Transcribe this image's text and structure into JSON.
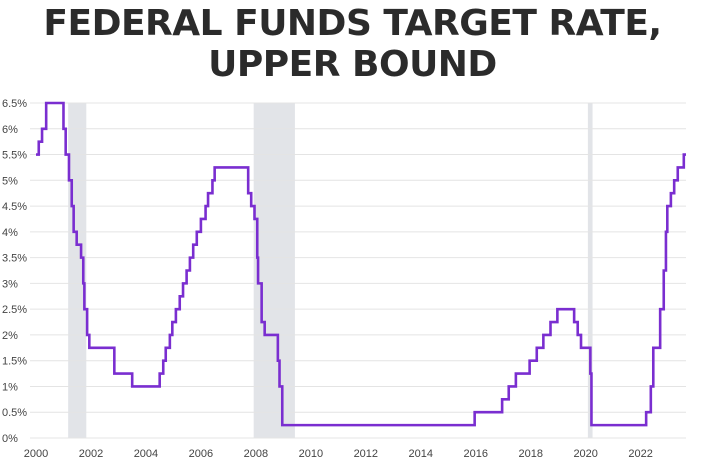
{
  "title_lines": [
    "FEDERAL FUNDS TARGET RATE,",
    "UPPER BOUND"
  ],
  "colors": {
    "line": "#7a2ed0",
    "recession": "#e2e4e8",
    "grid": "#e4e4e4",
    "title": "#2b2b2b",
    "tick": "#444444"
  },
  "chart_data": {
    "type": "line",
    "title": "FEDERAL FUNDS TARGET RATE, UPPER BOUND",
    "xlabel": "",
    "ylabel": "",
    "xlim": [
      2000.0,
      2023.65
    ],
    "ylim": [
      0,
      6.5
    ],
    "x_ticks": [
      2000,
      2002,
      2004,
      2006,
      2008,
      2010,
      2012,
      2014,
      2016,
      2018,
      2020,
      2022
    ],
    "x_tick_labels": [
      "2000",
      "2002",
      "2004",
      "2006",
      "2008",
      "2010",
      "2012",
      "2014",
      "2016",
      "2018",
      "2020",
      "2022"
    ],
    "y_ticks": [
      0,
      0.5,
      1,
      1.5,
      2,
      2.5,
      3,
      3.5,
      4,
      4.5,
      5,
      5.5,
      6,
      6.5
    ],
    "y_tick_labels": [
      "0%",
      "0.5%",
      "1%",
      "1.5%",
      "2%",
      "2.5%",
      "3%",
      "3.5%",
      "4%",
      "4.5%",
      "5%",
      "5.5%",
      "6%",
      "6.5%"
    ],
    "grid": true,
    "recessions": [
      [
        2001.17,
        2001.83
      ],
      [
        2007.92,
        2009.42
      ],
      [
        2020.08,
        2020.25
      ]
    ],
    "series": [
      {
        "name": "Federal funds target rate, upper bound",
        "step": true,
        "points": [
          [
            2000.0,
            5.5
          ],
          [
            2000.1,
            5.75
          ],
          [
            2000.22,
            6.0
          ],
          [
            2000.37,
            6.5
          ],
          [
            2001.0,
            6.0
          ],
          [
            2001.08,
            5.5
          ],
          [
            2001.2,
            5.0
          ],
          [
            2001.3,
            4.5
          ],
          [
            2001.37,
            4.0
          ],
          [
            2001.48,
            3.75
          ],
          [
            2001.64,
            3.5
          ],
          [
            2001.72,
            3.0
          ],
          [
            2001.76,
            2.5
          ],
          [
            2001.86,
            2.0
          ],
          [
            2001.94,
            1.75
          ],
          [
            2002.85,
            1.25
          ],
          [
            2003.5,
            1.0
          ],
          [
            2004.5,
            1.25
          ],
          [
            2004.63,
            1.5
          ],
          [
            2004.72,
            1.75
          ],
          [
            2004.87,
            2.0
          ],
          [
            2004.96,
            2.25
          ],
          [
            2005.09,
            2.5
          ],
          [
            2005.23,
            2.75
          ],
          [
            2005.35,
            3.0
          ],
          [
            2005.48,
            3.25
          ],
          [
            2005.6,
            3.5
          ],
          [
            2005.72,
            3.75
          ],
          [
            2005.85,
            4.0
          ],
          [
            2006.0,
            4.25
          ],
          [
            2006.17,
            4.5
          ],
          [
            2006.26,
            4.75
          ],
          [
            2006.42,
            5.0
          ],
          [
            2006.5,
            5.25
          ],
          [
            2007.72,
            4.75
          ],
          [
            2007.83,
            4.5
          ],
          [
            2007.95,
            4.25
          ],
          [
            2008.05,
            3.5
          ],
          [
            2008.08,
            3.0
          ],
          [
            2008.21,
            2.25
          ],
          [
            2008.32,
            2.0
          ],
          [
            2008.8,
            1.5
          ],
          [
            2008.86,
            1.0
          ],
          [
            2008.96,
            0.25
          ],
          [
            2015.96,
            0.5
          ],
          [
            2016.96,
            0.75
          ],
          [
            2017.2,
            1.0
          ],
          [
            2017.46,
            1.25
          ],
          [
            2017.96,
            1.5
          ],
          [
            2018.22,
            1.75
          ],
          [
            2018.46,
            2.0
          ],
          [
            2018.72,
            2.25
          ],
          [
            2018.97,
            2.5
          ],
          [
            2019.58,
            2.25
          ],
          [
            2019.71,
            2.0
          ],
          [
            2019.83,
            1.75
          ],
          [
            2020.17,
            1.25
          ],
          [
            2020.21,
            0.25
          ],
          [
            2022.2,
            0.5
          ],
          [
            2022.37,
            1.0
          ],
          [
            2022.46,
            1.75
          ],
          [
            2022.71,
            2.5
          ],
          [
            2022.84,
            3.25
          ],
          [
            2022.92,
            4.0
          ],
          [
            2022.97,
            4.5
          ],
          [
            2023.1,
            4.75
          ],
          [
            2023.22,
            5.0
          ],
          [
            2023.35,
            5.25
          ],
          [
            2023.57,
            5.5
          ],
          [
            2023.65,
            5.5
          ]
        ]
      }
    ]
  }
}
